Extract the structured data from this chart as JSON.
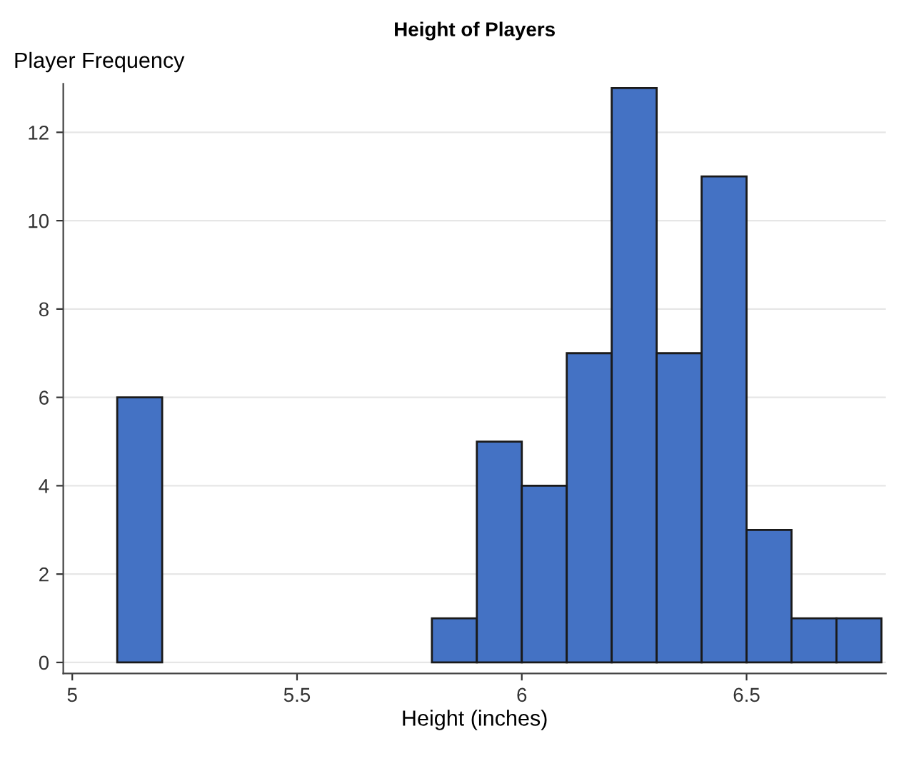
{
  "chart_data": {
    "type": "histogram",
    "title": "Height of Players",
    "xlabel": "Height (inches)",
    "ylabel": "Player Frequency",
    "bins": [
      5.1,
      5.2,
      5.3,
      5.4,
      5.5,
      5.6,
      5.7,
      5.8,
      5.9,
      6.0,
      6.1,
      6.2,
      6.3,
      6.4,
      6.5,
      6.6,
      6.7,
      6.8
    ],
    "values": [
      6,
      0,
      0,
      0,
      0,
      0,
      0,
      1,
      5,
      4,
      7,
      13,
      7,
      11,
      3,
      1,
      1
    ],
    "color": "#4472c4",
    "xlim": [
      4.98,
      6.81
    ],
    "xticks": [
      5,
      5.5,
      6,
      6.5
    ],
    "ylim": [
      -0.25,
      13.1
    ],
    "yticks": [
      0,
      2,
      4,
      6,
      8,
      10,
      12
    ],
    "grid": "y"
  }
}
